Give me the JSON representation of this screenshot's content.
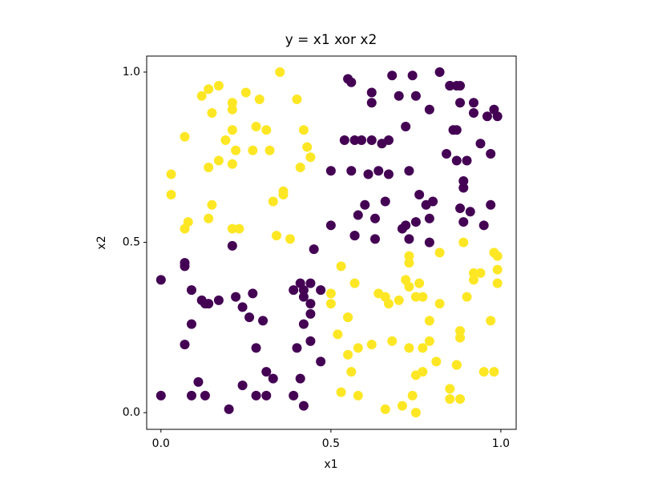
{
  "chart_data": {
    "type": "scatter",
    "title": "y = x1 xor x2",
    "x_label": "x1",
    "y_label": "x2",
    "xlim": [
      -0.042,
      1.045
    ],
    "ylim": [
      -0.049,
      1.047
    ],
    "xticks": [
      {
        "value": 0,
        "label": "0.0"
      },
      0.5,
      {
        "value": 1,
        "label": "1.0"
      }
    ],
    "yticks": [
      {
        "value": 0,
        "label": "0.0"
      },
      0.5,
      {
        "value": 1,
        "label": "1.0"
      }
    ],
    "grid": false,
    "series": [
      {
        "color": "#440154",
        "x": [
          0.0,
          0.0,
          0.07,
          0.07,
          0.07,
          0.09,
          0.09,
          0.09,
          0.11,
          0.12,
          0.13,
          0.14,
          0.13,
          0.17,
          0.2,
          0.21,
          0.22,
          0.24,
          0.24,
          0.26,
          0.27,
          0.28,
          0.28,
          0.3,
          0.31,
          0.31,
          0.33,
          0.39,
          0.39,
          0.4,
          0.41,
          0.41,
          0.42,
          0.42,
          0.42,
          0.42,
          0.44,
          0.44,
          0.44,
          0.44,
          0.45,
          0.47,
          0.47,
          0.5,
          0.5,
          0.55,
          0.56,
          0.54,
          0.57,
          0.56,
          0.57,
          0.57,
          0.58,
          0.59,
          0.6,
          0.62,
          0.62,
          0.62,
          0.61,
          0.63,
          0.63,
          0.64,
          0.65,
          0.67,
          0.66,
          0.67,
          0.68,
          0.7,
          0.71,
          0.72,
          0.72,
          0.73,
          0.73,
          0.74,
          0.75,
          0.75,
          0.76,
          0.78,
          0.79,
          0.79,
          0.79,
          0.8,
          0.82,
          0.84,
          0.85,
          0.85,
          0.86,
          0.87,
          0.87,
          0.88,
          0.88,
          0.87,
          0.89,
          0.89,
          0.88,
          0.89,
          0.9,
          0.91,
          0.92,
          0.92,
          0.94,
          0.95,
          0.96,
          0.97,
          0.97,
          0.98,
          0.99
        ],
        "y": [
          0.05,
          0.39,
          0.44,
          0.43,
          0.2,
          0.36,
          0.26,
          0.05,
          0.09,
          0.33,
          0.32,
          0.32,
          0.05,
          0.33,
          0.01,
          0.49,
          0.34,
          0.08,
          0.31,
          0.28,
          0.35,
          0.19,
          0.05,
          0.27,
          0.12,
          0.05,
          0.1,
          0.05,
          0.36,
          0.19,
          0.1,
          0.38,
          0.34,
          0.36,
          0.26,
          0.02,
          0.38,
          0.32,
          0.29,
          0.21,
          0.48,
          0.36,
          0.15,
          0.71,
          0.55,
          0.98,
          0.97,
          0.8,
          0.8,
          0.71,
          0.52,
          0.52,
          0.58,
          0.8,
          0.61,
          0.91,
          0.94,
          0.8,
          0.7,
          0.57,
          0.51,
          0.71,
          0.79,
          0.8,
          0.62,
          0.7,
          0.99,
          0.93,
          0.54,
          0.55,
          0.84,
          0.71,
          0.51,
          0.99,
          0.56,
          0.93,
          0.64,
          0.61,
          0.89,
          0.57,
          0.5,
          0.62,
          1.0,
          0.76,
          0.96,
          0.96,
          0.83,
          0.83,
          0.96,
          0.91,
          0.96,
          0.74,
          0.66,
          0.68,
          0.6,
          0.56,
          0.74,
          0.59,
          0.91,
          0.88,
          0.79,
          0.55,
          0.87,
          0.76,
          0.61,
          0.89,
          0.87
        ]
      },
      {
        "color": "#fde725",
        "x": [
          0.03,
          0.03,
          0.07,
          0.07,
          0.08,
          0.12,
          0.14,
          0.17,
          0.15,
          0.14,
          0.15,
          0.14,
          0.17,
          0.19,
          0.21,
          0.21,
          0.21,
          0.21,
          0.21,
          0.22,
          0.23,
          0.25,
          0.27,
          0.28,
          0.29,
          0.31,
          0.32,
          0.33,
          0.34,
          0.35,
          0.36,
          0.36,
          0.38,
          0.4,
          0.41,
          0.42,
          0.43,
          0.44,
          0.5,
          0.5,
          0.52,
          0.53,
          0.53,
          0.55,
          0.55,
          0.55,
          0.56,
          0.57,
          0.58,
          0.58,
          0.62,
          0.64,
          0.66,
          0.67,
          0.66,
          0.68,
          0.7,
          0.71,
          0.72,
          0.73,
          0.73,
          0.73,
          0.73,
          0.74,
          0.75,
          0.75,
          0.75,
          0.76,
          0.77,
          0.77,
          0.77,
          0.79,
          0.79,
          0.81,
          0.82,
          0.82,
          0.85,
          0.85,
          0.87,
          0.87,
          0.88,
          0.88,
          0.88,
          0.89,
          0.9,
          0.92,
          0.92,
          0.94,
          0.95,
          0.97,
          0.98,
          0.98,
          0.99,
          0.99,
          0.99
        ],
        "y": [
          0.7,
          0.64,
          0.81,
          0.54,
          0.56,
          0.93,
          0.95,
          0.96,
          0.88,
          0.72,
          0.61,
          0.57,
          0.74,
          0.8,
          0.54,
          0.73,
          0.89,
          0.91,
          0.83,
          0.77,
          0.54,
          0.94,
          0.77,
          0.84,
          0.92,
          0.83,
          0.77,
          0.62,
          0.52,
          1.0,
          0.65,
          0.64,
          0.51,
          0.92,
          0.72,
          0.83,
          0.78,
          0.75,
          0.35,
          0.32,
          0.23,
          0.43,
          0.06,
          0.28,
          0.28,
          0.17,
          0.12,
          0.38,
          0.19,
          0.05,
          0.2,
          0.35,
          0.34,
          0.32,
          0.01,
          0.21,
          0.33,
          0.02,
          0.39,
          0.19,
          0.46,
          0.44,
          0.37,
          0.05,
          0.11,
          0.0,
          0.34,
          0.38,
          0.12,
          0.34,
          0.19,
          0.21,
          0.27,
          0.15,
          0.47,
          0.32,
          0.04,
          0.07,
          0.14,
          0.14,
          0.22,
          0.24,
          0.04,
          0.5,
          0.34,
          0.41,
          0.39,
          0.41,
          0.12,
          0.27,
          0.47,
          0.12,
          0.46,
          0.42,
          0.38
        ]
      }
    ]
  }
}
